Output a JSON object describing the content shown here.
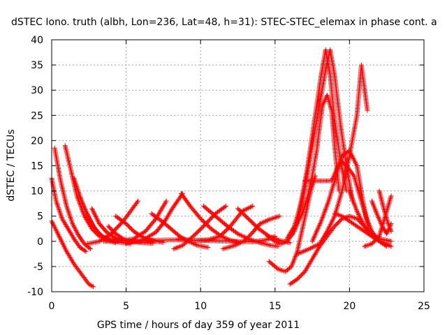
{
  "chart_data": {
    "type": "scatter",
    "title": "dSTEC Iono. truth (albh, Lon=236, Lat=48, h=31): STEC-STEC_elemax in phase cont. a",
    "xlabel": "GPS time / hours of day 359 of year 2011",
    "ylabel": "dSTEC  / TECUs",
    "xlim": [
      0,
      25
    ],
    "ylim": [
      -10,
      40
    ],
    "xticks": [
      "0",
      "5",
      "10",
      "15",
      "20",
      "25"
    ],
    "yticks": [
      "-10",
      "-5",
      "0",
      "5",
      "10",
      "15",
      "20",
      "25",
      "30",
      "35",
      "40"
    ],
    "grid": true,
    "marker": "plus",
    "color": "#ff0000",
    "series": [
      {
        "x": [
          0,
          0.5,
          1,
          1.5,
          2,
          2.5,
          2.8
        ],
        "y": [
          4,
          1,
          -2,
          -4.5,
          -6.5,
          -8.5,
          -9
        ]
      },
      {
        "x": [
          0,
          0.3,
          0.7,
          1.1,
          1.5,
          1.9,
          2.3
        ],
        "y": [
          12.5,
          8,
          4.5,
          2.5,
          0.5,
          -1.2,
          -2
        ]
      },
      {
        "x": [
          0.2,
          0.6,
          1,
          1.4,
          1.8,
          2.2,
          2.6
        ],
        "y": [
          18.5,
          12,
          7,
          3.5,
          1.2,
          -0.5,
          -1.5
        ]
      },
      {
        "x": [
          0.9,
          1.3,
          1.7,
          2.2,
          2.7,
          3.2,
          3.8,
          4.5,
          5.5,
          6.8,
          8.2,
          9.5,
          11,
          12.3,
          13.5,
          14.4,
          15
        ],
        "y": [
          19,
          14,
          9,
          5,
          2.5,
          1,
          0.3,
          0,
          0,
          0.2,
          0.3,
          0.2,
          0.1,
          0,
          -0.1,
          0.3,
          1
        ]
      },
      {
        "x": [
          1.5,
          2,
          2.5,
          3,
          3.5,
          4,
          4.6,
          5.3
        ],
        "y": [
          12.5,
          8,
          4.5,
          2,
          0.8,
          0.2,
          -0.2,
          -0.5
        ]
      },
      {
        "x": [
          1.8,
          2.3,
          2.8,
          3.3,
          3.8,
          4.3
        ],
        "y": [
          9.5,
          6,
          3,
          1.2,
          0.2,
          -0.3
        ]
      },
      {
        "x": [
          2.7,
          3.2,
          3.7,
          4.2,
          4.7,
          5.2
        ],
        "y": [
          6.5,
          3.5,
          1.8,
          0.8,
          0.3,
          0
        ]
      },
      {
        "x": [
          3.8,
          4.3,
          4.8,
          5.3,
          5.8,
          6.3,
          6.8
        ],
        "y": [
          3,
          1.5,
          0.5,
          0,
          -0.2,
          -0.3,
          -0.4
        ]
      },
      {
        "x": [
          2.4,
          3.2,
          4,
          4.8,
          5.3,
          5.8
        ],
        "y": [
          -0.5,
          0,
          1.5,
          4,
          6,
          8
        ]
      },
      {
        "x": [
          4.3,
          5,
          5.5,
          6,
          6.5,
          7,
          7.5
        ],
        "y": [
          5,
          3.5,
          2,
          1,
          0.3,
          0,
          -0.2
        ]
      },
      {
        "x": [
          5,
          6,
          7,
          7.6,
          8.1,
          8.8
        ],
        "y": [
          -0.3,
          0,
          1.8,
          4,
          6.5,
          9.5
        ]
      },
      {
        "x": [
          3.5,
          4.5,
          5.5,
          6.3,
          7,
          7.7
        ],
        "y": [
          0,
          0,
          0.5,
          2,
          4.5,
          8
        ]
      },
      {
        "x": [
          6.7,
          7.4,
          8,
          8.6,
          9.2,
          9.8,
          10.5
        ],
        "y": [
          5.5,
          4,
          2.5,
          1,
          0,
          -0.8,
          -1.2
        ]
      },
      {
        "x": [
          8.2,
          8.8,
          9.5,
          10.2,
          11,
          11.7
        ],
        "y": [
          -1.5,
          -0.8,
          1,
          3,
          5.5,
          7
        ]
      },
      {
        "x": [
          8.7,
          9.3,
          10,
          10.7,
          11.4,
          12,
          12.6
        ],
        "y": [
          9.5,
          7,
          4.5,
          2.5,
          1,
          0.2,
          -0.3
        ]
      },
      {
        "x": [
          8.5,
          9.5,
          10.5,
          11.3,
          12,
          12.8,
          13.5
        ],
        "y": [
          0.5,
          0.2,
          0.3,
          1,
          3,
          6,
          7
        ]
      },
      {
        "x": [
          10.2,
          11,
          11.8,
          12.5,
          13.2,
          14,
          14.7,
          15.2
        ],
        "y": [
          7,
          5,
          3,
          1.5,
          0.5,
          -0.3,
          -0.8,
          -1
        ]
      },
      {
        "x": [
          11.5,
          12.3,
          13,
          13.5,
          14,
          14.6,
          15.3
        ],
        "y": [
          -1.5,
          -0.8,
          0.2,
          1.8,
          3.5,
          4.3,
          5
        ]
      },
      {
        "x": [
          12.5,
          13.2,
          13.9,
          14.6,
          15.3,
          16
        ],
        "y": [
          6.5,
          4.5,
          2.5,
          1,
          0.2,
          -0.3
        ]
      },
      {
        "x": [
          14.5,
          15,
          15.4,
          15.8,
          16.2,
          16.5,
          16.9,
          17.2,
          17.5,
          17.8,
          18,
          18.2,
          18.5,
          18.8,
          19,
          19.3
        ],
        "y": [
          1,
          0,
          -0.5,
          0,
          1.5,
          3.5,
          6,
          9,
          13,
          18,
          23,
          27,
          29,
          26,
          19,
          10
        ]
      },
      {
        "x": [
          14.6,
          15.2,
          15.7,
          16.1,
          16.5,
          16.8,
          17.1,
          17.4,
          17.7
        ],
        "y": [
          -4,
          -5.5,
          -6,
          -5,
          -2,
          2,
          6,
          10,
          13
        ]
      },
      {
        "x": [
          15.8,
          16.3,
          16.6,
          16.9,
          17.2,
          17.5,
          17.8,
          18.1,
          18.4,
          18.7,
          19,
          19.4,
          19.8
        ],
        "y": [
          0.5,
          3,
          6,
          10,
          15,
          21,
          27,
          33,
          38,
          33,
          24,
          16,
          10
        ]
      },
      {
        "x": [
          16.3,
          16.6,
          16.9,
          17.2,
          17.5,
          17.8,
          18.1,
          18.4,
          18.7,
          19,
          19.4,
          19.8,
          20.2
        ],
        "y": [
          2,
          5,
          9,
          14,
          19,
          24,
          29,
          34,
          38,
          33,
          23,
          15,
          8
        ]
      },
      {
        "x": [
          16,
          16.5,
          17,
          17.5,
          18,
          18.5,
          19,
          19.5,
          20,
          20.5,
          21,
          21.5,
          22
        ],
        "y": [
          -8.5,
          -7.5,
          -6,
          -3.5,
          -1,
          1,
          3,
          4.5,
          5,
          4.5,
          3,
          1.5,
          0.5
        ]
      },
      {
        "x": [
          17,
          17.6,
          18.2,
          18.8,
          19.4,
          19.8,
          20.3,
          20.7,
          21.1,
          21.5,
          22,
          22.5
        ],
        "y": [
          12,
          12,
          12,
          12,
          16,
          15,
          13,
          9,
          5,
          2,
          0,
          -1
        ]
      },
      {
        "x": [
          17.5,
          18.1,
          18.6,
          19,
          19.5,
          20,
          20.5,
          20.9,
          21.3
        ],
        "y": [
          0,
          4,
          8,
          12,
          17,
          18,
          15,
          8,
          2
        ]
      },
      {
        "x": [
          16.5,
          17.3,
          18,
          18.5,
          19,
          19.5,
          20,
          20.5,
          20.8,
          21.2
        ],
        "y": [
          -2.5,
          -1.5,
          -0.5,
          2,
          5,
          10,
          17,
          25,
          35,
          26
        ]
      },
      {
        "x": [
          19,
          19.5,
          20,
          20.5,
          21,
          21.5,
          22,
          22.5,
          22.8
        ],
        "y": [
          5.5,
          5,
          4,
          3,
          2,
          1,
          0.5,
          0.2,
          0
        ]
      },
      {
        "x": [
          20,
          20.5,
          21,
          21.5,
          22,
          22.5,
          22.8
        ],
        "y": [
          10,
          6,
          3,
          1,
          0,
          -0.5,
          -1
        ]
      },
      {
        "x": [
          21,
          21.5,
          22,
          22.4,
          22.8
        ],
        "y": [
          -1,
          -0.5,
          1,
          5,
          9
        ]
      },
      {
        "x": [
          21.5,
          21.9,
          22.2,
          22.5,
          22.8
        ],
        "y": [
          8,
          5,
          3,
          1.5,
          3.5
        ]
      },
      {
        "x": [
          22,
          22.3,
          22.6,
          22.8
        ],
        "y": [
          10,
          6.5,
          3.5,
          2
        ]
      }
    ]
  }
}
